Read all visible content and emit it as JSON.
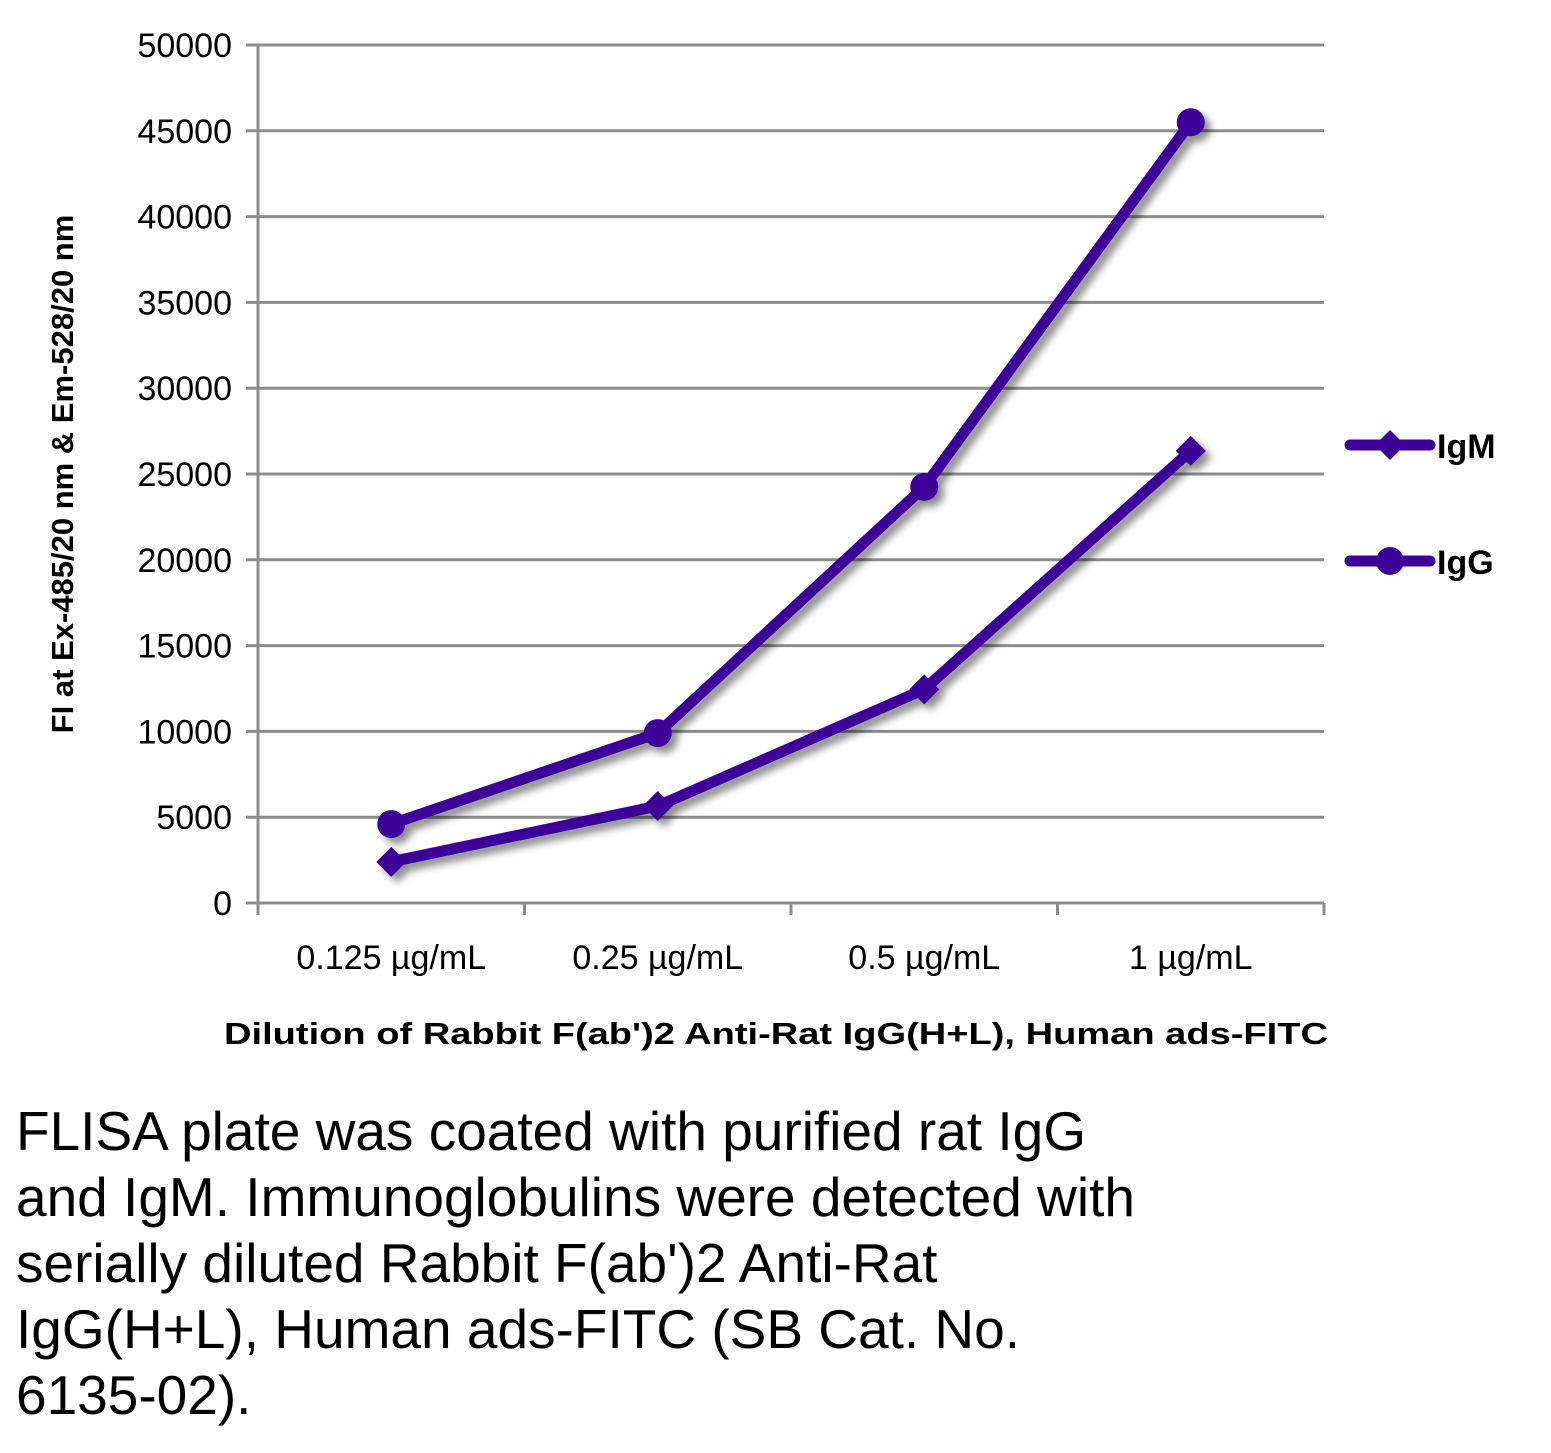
{
  "chart_data": {
    "type": "line",
    "title": "",
    "xlabel": "Dilution of Rabbit F(ab')2 Anti-Rat IgG(H+L), Human ads-FITC",
    "ylabel": "FI at Ex-485/20 nm & Em-528/20 nm",
    "categories": [
      "0.125 µg/mL",
      "0.25 µg/mL",
      "0.5 µg/mL",
      "1 µg/mL"
    ],
    "ylim": [
      0,
      50000
    ],
    "yticks": [
      "0",
      "5000",
      "10000",
      "15000",
      "20000",
      "25000",
      "30000",
      "35000",
      "40000",
      "45000",
      "50000"
    ],
    "grid": true,
    "legend_position": "right",
    "series": [
      {
        "name": "IgM",
        "marker": "diamond",
        "color": "#3d0099",
        "values": [
          2400,
          5650,
          12450,
          26350
        ]
      },
      {
        "name": "IgG",
        "marker": "circle",
        "color": "#3d0099",
        "values": [
          4600,
          9900,
          24250,
          45500
        ]
      }
    ]
  },
  "caption": {
    "lines": [
      "FLISA plate was coated with purified rat IgG",
      "and IgM.  Immunoglobulins were detected with",
      "serially diluted Rabbit F(ab')2 Anti-Rat",
      "IgG(H+L), Human ads-FITC (SB Cat. No.",
      "6135-02)."
    ]
  },
  "colors": {
    "series": "#3d0099",
    "grid": "#8c8c8c",
    "shadow": "#9a9a9a"
  }
}
